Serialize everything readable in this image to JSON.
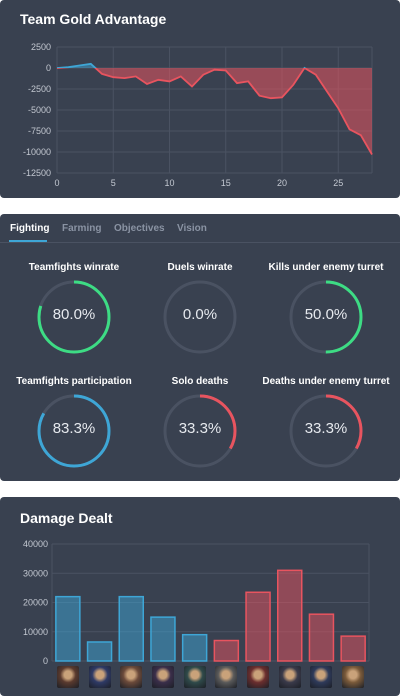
{
  "gold": {
    "title": "Team Gold Advantage",
    "y_ticks": [
      "2500",
      "0",
      "-2500",
      "-5000",
      "-7500",
      "-10000",
      "-12500"
    ],
    "x_ticks": [
      "0",
      "5",
      "10",
      "15",
      "20",
      "25"
    ],
    "colors": {
      "positive": "#3ea6d6",
      "negative": "#e8545f"
    }
  },
  "tabs": [
    {
      "label": "Fighting",
      "active": true
    },
    {
      "label": "Farming",
      "active": false
    },
    {
      "label": "Objectives",
      "active": false
    },
    {
      "label": "Vision",
      "active": false
    }
  ],
  "stats": [
    {
      "label": "Teamfights winrate",
      "value": "80.0%",
      "pct": 80.0,
      "color": "#3ddc84"
    },
    {
      "label": "Duels winrate",
      "value": "0.0%",
      "pct": 0.0,
      "color": "#3ddc84"
    },
    {
      "label": "Kills under enemy turret",
      "value": "50.0%",
      "pct": 50.0,
      "color": "#3ddc84"
    },
    {
      "label": "Teamfights participation",
      "value": "83.3%",
      "pct": 83.3,
      "color": "#3ea6d6"
    },
    {
      "label": "Solo deaths",
      "value": "33.3%",
      "pct": 33.3,
      "color": "#e8545f"
    },
    {
      "label": "Deaths under enemy turret",
      "value": "33.3%",
      "pct": 33.3,
      "color": "#e8545f"
    }
  ],
  "damage": {
    "title": "Damage Dealt",
    "y_ticks": [
      "40000",
      "30000",
      "20000",
      "10000",
      "0"
    ],
    "portrait_icons": [
      "champion-1",
      "champion-2",
      "champion-3",
      "champion-4",
      "champion-5",
      "champion-6",
      "champion-7",
      "champion-8",
      "champion-9",
      "champion-10"
    ]
  },
  "chart_data": [
    {
      "type": "area",
      "title": "Team Gold Advantage",
      "xlim": [
        0,
        28
      ],
      "ylim": [
        -12500,
        2500
      ],
      "x": [
        0,
        1,
        2,
        3,
        4,
        5,
        6,
        7,
        8,
        9,
        10,
        11,
        12,
        13,
        14,
        15,
        16,
        17,
        18,
        19,
        20,
        21,
        22,
        23,
        24,
        25,
        26,
        27,
        28
      ],
      "y": [
        0,
        100,
        300,
        500,
        -700,
        -1100,
        -1200,
        -1000,
        -1900,
        -1400,
        -1600,
        -1000,
        -2200,
        -800,
        -200,
        -300,
        -1800,
        -1600,
        -3300,
        -3600,
        -3500,
        -2000,
        0,
        -800,
        -2800,
        -4800,
        -7300,
        -8000,
        -10300
      ],
      "grid": true
    },
    {
      "type": "bar",
      "title": "Damage Dealt",
      "categories": [
        "1",
        "2",
        "3",
        "4",
        "5",
        "6",
        "7",
        "8",
        "9",
        "10"
      ],
      "values": [
        22000,
        6500,
        22000,
        15000,
        9000,
        7000,
        23500,
        31000,
        16000,
        8500
      ],
      "colors": [
        "#3ea6d6",
        "#3ea6d6",
        "#3ea6d6",
        "#3ea6d6",
        "#3ea6d6",
        "#e8545f",
        "#e8545f",
        "#e8545f",
        "#e8545f",
        "#e8545f"
      ],
      "ylim": [
        0,
        40000
      ],
      "grid": true
    }
  ]
}
